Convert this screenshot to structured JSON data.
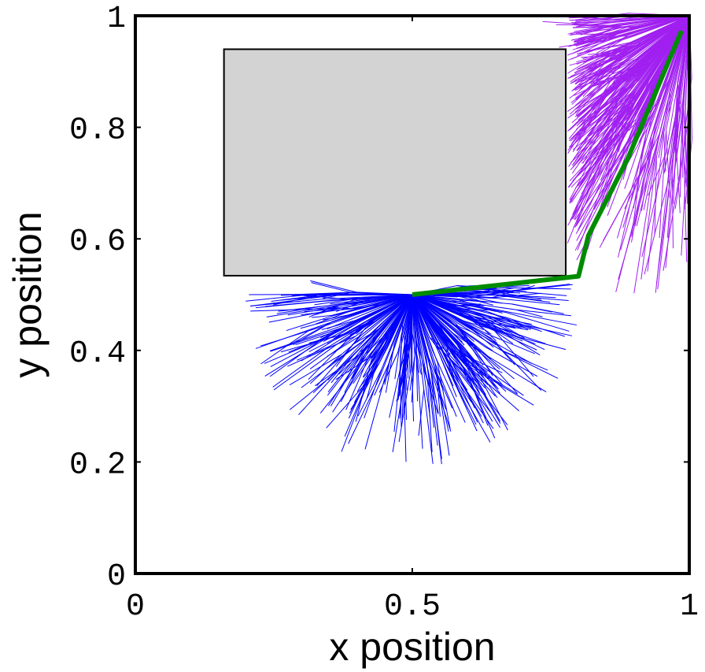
{
  "chart_data": {
    "type": "scatter",
    "title": "",
    "xlabel": "x position",
    "ylabel": "y position",
    "xlim": [
      0,
      1
    ],
    "ylim": [
      0,
      1
    ],
    "grid": false,
    "legend": null,
    "x_ticks": [
      {
        "value": 0,
        "label": "0"
      },
      {
        "value": 0.5,
        "label": "0.5"
      },
      {
        "value": 1,
        "label": "1"
      }
    ],
    "y_ticks": [
      {
        "value": 0,
        "label": "0"
      },
      {
        "value": 0.2,
        "label": "0.2"
      },
      {
        "value": 0.4,
        "label": "0.4"
      },
      {
        "value": 0.6,
        "label": "0.6"
      },
      {
        "value": 0.8,
        "label": "0.8"
      },
      {
        "value": 1,
        "label": "1"
      }
    ],
    "obstacle": {
      "shape": "rectangle",
      "x_min": 0.16,
      "x_max": 0.777,
      "y_min": 0.534,
      "y_max": 0.94,
      "fill": "#d3d3d3",
      "edge": "#000000"
    },
    "trees": [
      {
        "name": "start tree",
        "root": [
          0.5,
          0.5
        ],
        "color": "#0000ff",
        "extent": "lower half-disk of radius ~0.31 around root, plus near-horizontal branches up to x≈0.8 under obstacle",
        "angle_range_deg": [
          -180,
          15
        ],
        "radius_range": [
          0.12,
          0.31
        ],
        "branch_count": 260
      },
      {
        "name": "goal tree",
        "root": [
          1.0,
          1.0
        ],
        "color": "#a020f0",
        "extent": "fan to the lower-left of root, bounded by obstacle on the left, reaching down to y≈0.5",
        "angle_range_deg": [
          180,
          270
        ],
        "radius_range": [
          0.2,
          0.52
        ],
        "branch_count": 230
      }
    ],
    "path": {
      "name": "solution path",
      "color": "#008c00",
      "points": [
        [
          0.5,
          0.5
        ],
        [
          0.8,
          0.533
        ],
        [
          0.818,
          0.606
        ],
        [
          0.889,
          0.744
        ],
        [
          0.986,
          0.973
        ]
      ]
    }
  },
  "colors": {
    "axes": "#000000",
    "start_tree": "#0000ff",
    "goal_tree": "#a020f0",
    "path": "#008c00",
    "obstacle": "#d3d3d3"
  }
}
